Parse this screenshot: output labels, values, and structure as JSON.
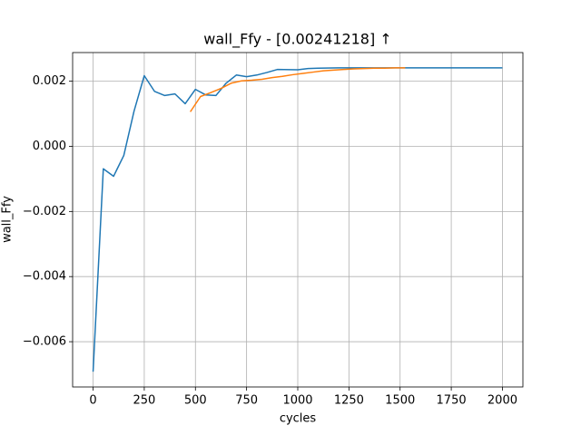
{
  "chart_data": {
    "type": "line",
    "title": "wall_Ffy - [0.00241218]  ↑",
    "x_label": "cycles",
    "y_label": "wall_Ffy",
    "xlim": [
      -100,
      2100
    ],
    "ylim": [
      -0.00739,
      0.00288
    ],
    "xticks": [
      0,
      250,
      500,
      750,
      1000,
      1250,
      1500,
      1750,
      2000
    ],
    "yticks": [
      {
        "value": -0.006,
        "label": "−0.006"
      },
      {
        "value": -0.004,
        "label": "−0.004"
      },
      {
        "value": -0.002,
        "label": "−0.002"
      },
      {
        "value": 0,
        "label": "0.000"
      },
      0.002
    ],
    "grid": true,
    "series": [
      {
        "color": "#1f77b4",
        "x": [
          0,
          50,
          100,
          150,
          200,
          250,
          300,
          350,
          400,
          450,
          500,
          550,
          600,
          650,
          700,
          750,
          800,
          850,
          900,
          1000,
          1050,
          1100,
          1200,
          1300,
          1400,
          1500,
          1600,
          1700,
          1800,
          1900,
          2000
        ],
        "values": [
          -0.00692,
          -0.00069,
          -0.00092,
          -0.00028,
          0.00108,
          0.00217,
          0.00169,
          0.00156,
          0.00161,
          0.00131,
          0.00175,
          0.00158,
          0.00156,
          0.00194,
          0.00219,
          0.00214,
          0.00219,
          0.00227,
          0.00236,
          0.00235,
          0.00239,
          0.0024,
          0.00241,
          0.00241,
          0.00241,
          0.00241,
          0.00241,
          0.00241,
          0.00241,
          0.00241,
          0.00241
        ]
      },
      {
        "color": "#ff7f0e",
        "x": [
          475,
          525,
          575,
          625,
          675,
          725,
          775,
          825,
          875,
          925,
          975,
          1025,
          1075,
          1125,
          1175,
          1225,
          1275,
          1325,
          1375,
          1425,
          1475,
          1525
        ],
        "values": [
          0.00106,
          0.00153,
          0.00165,
          0.00178,
          0.00194,
          0.00201,
          0.00203,
          0.00206,
          0.00211,
          0.00215,
          0.0022,
          0.00224,
          0.00228,
          0.00232,
          0.00234,
          0.00236,
          0.00238,
          0.00239,
          0.0024,
          0.0024,
          0.00241,
          0.00241
        ]
      }
    ]
  }
}
